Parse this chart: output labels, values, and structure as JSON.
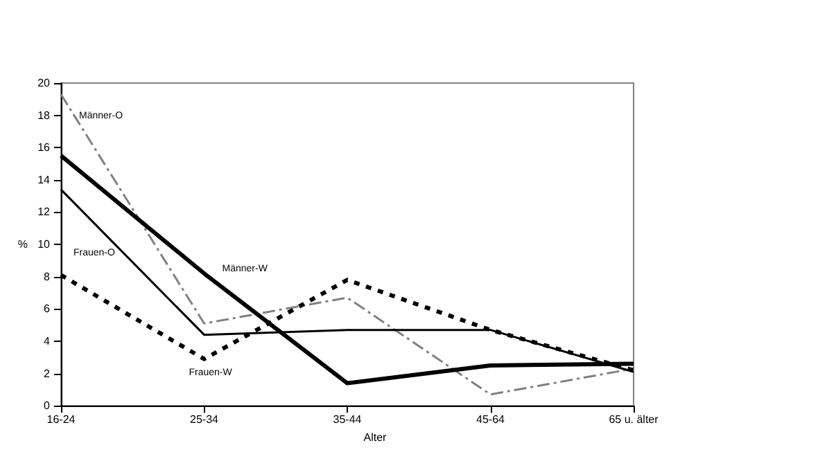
{
  "chart_data": {
    "type": "line",
    "xlabel": "Alter",
    "ylabel": "%",
    "categories": [
      "16-24",
      "25-34",
      "35-44",
      "45-64",
      "65 u. älter"
    ],
    "series": [
      {
        "name": "Männer-O",
        "color": "#808080",
        "line_style": "dashdot",
        "values": [
          19.3,
          5.1,
          6.7,
          0.7,
          2.3
        ]
      },
      {
        "name": "Männer-W",
        "color": "#000000",
        "values": [
          15.5,
          8.2,
          1.4,
          2.5,
          2.6
        ]
      },
      {
        "name": "Frauen-O",
        "color": "#000000",
        "values": [
          13.4,
          4.4,
          4.7,
          4.7,
          2.1
        ]
      },
      {
        "name": "Frauen-W",
        "color": "#000000",
        "line_style": "dashed",
        "values": [
          8.1,
          2.9,
          7.8,
          4.7,
          2.2
        ]
      }
    ],
    "ylim": [
      0,
      20
    ],
    "yticks": [
      0,
      2,
      4,
      6,
      8,
      10,
      12,
      14,
      16,
      18,
      20
    ],
    "grid": false,
    "legend": false,
    "marker": "none"
  }
}
